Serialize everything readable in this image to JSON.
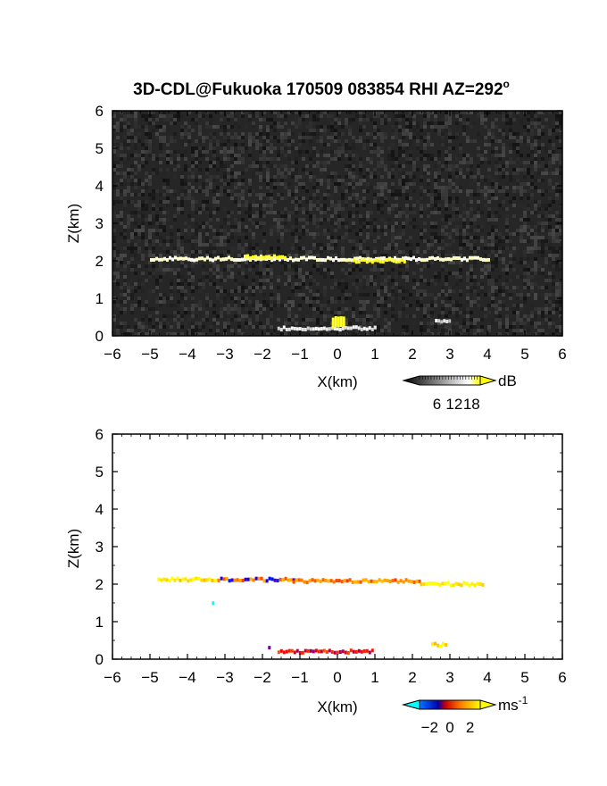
{
  "title": {
    "prefix": "3D-CDL@Fukuoka 170509 083854 RHI AZ=292",
    "suffix": "o"
  },
  "chart_data": [
    {
      "type": "heatmap",
      "name": "backscatter",
      "xlabel": "X(km)",
      "ylabel": "Z(km)",
      "xlim": [
        -6,
        6
      ],
      "ylim": [
        0,
        6
      ],
      "xticks": [
        -6,
        -5,
        -4,
        -3,
        -2,
        -1,
        0,
        1,
        2,
        3,
        4,
        5,
        6
      ],
      "yticks": [
        0,
        1,
        2,
        3,
        4,
        5,
        6
      ],
      "background": "dark gray noise",
      "colorbar": {
        "unit": "dB",
        "ticks": [
          6,
          12,
          18
        ],
        "range": [
          0,
          21
        ],
        "colors": [
          "#000000",
          "#ffffff",
          "#ffff00"
        ]
      },
      "features": [
        {
          "label": "layer",
          "x": [
            -5,
            4
          ],
          "z": 2.05,
          "value": 12
        },
        {
          "label": "strong",
          "x": [
            -2.5,
            -1.4
          ],
          "z": 2.1,
          "value": 19
        },
        {
          "label": "strong",
          "x": [
            0.4,
            1.8
          ],
          "z": 2.0,
          "value": 19
        },
        {
          "label": "near_ground",
          "x": [
            -1.6,
            1.0
          ],
          "z": 0.2,
          "value": 10
        },
        {
          "label": "ground_peak",
          "x": [
            -0.15,
            0.15
          ],
          "z": 0.35,
          "value": 20
        },
        {
          "label": "patch",
          "x": [
            2.6,
            3.0
          ],
          "z": 0.38,
          "value": 9
        }
      ]
    },
    {
      "type": "heatmap",
      "name": "velocity",
      "xlabel": "X(km)",
      "ylabel": "Z(km)",
      "xlim": [
        -6,
        6
      ],
      "ylim": [
        0,
        6
      ],
      "xticks": [
        -6,
        -5,
        -4,
        -3,
        -2,
        -1,
        0,
        1,
        2,
        3,
        4,
        5,
        6
      ],
      "yticks": [
        0,
        1,
        2,
        3,
        4,
        5,
        6
      ],
      "colorbar": {
        "unit": "ms",
        "unit_exp": "-1",
        "ticks": [
          "−2",
          "0",
          "2"
        ],
        "range": [
          -3,
          3
        ],
        "colors": [
          "#00ffff",
          "#0000ff",
          "#ff0000",
          "#ffa500",
          "#ffff00"
        ]
      },
      "features": [
        {
          "label": "layer_west",
          "x": [
            -4.8,
            -3.2
          ],
          "z": 2.12,
          "value": 2.5
        },
        {
          "label": "layer_mix",
          "x": [
            -3.2,
            -1.2
          ],
          "z": 2.12,
          "value": 0
        },
        {
          "label": "layer_center",
          "x": [
            -1.2,
            2.2
          ],
          "z": 2.08,
          "value": 1.2
        },
        {
          "label": "layer_east",
          "x": [
            2.2,
            3.9
          ],
          "z": 2.0,
          "value": 2.8
        },
        {
          "label": "near_ground",
          "x": [
            -1.6,
            0.9
          ],
          "z": 0.2,
          "value": 0
        },
        {
          "label": "patch",
          "x": [
            2.5,
            2.9
          ],
          "z": 0.38,
          "value": 2.5
        },
        {
          "label": "isolated",
          "x": [
            -3.35,
            -3.35
          ],
          "z": 1.48,
          "value": -2.8
        },
        {
          "label": "isolated",
          "x": [
            -1.85,
            -1.85
          ],
          "z": 0.32,
          "value": -1.2
        }
      ]
    }
  ]
}
